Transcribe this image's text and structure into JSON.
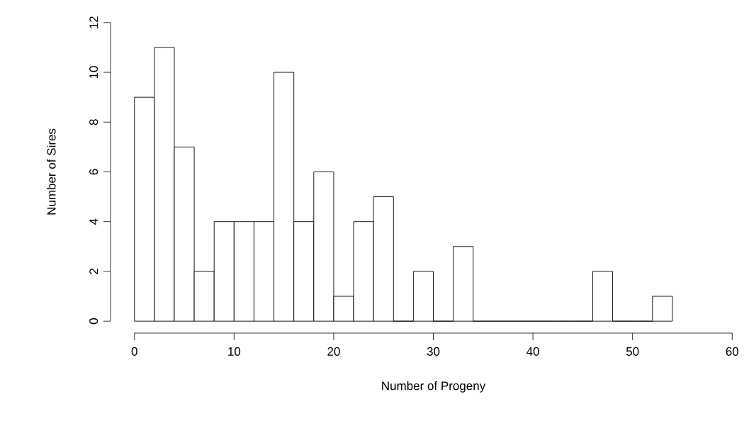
{
  "chart_data": {
    "type": "histogram",
    "xlabel": "Number of Progeny",
    "ylabel": "Number of Sires",
    "bins": [
      0,
      2,
      4,
      6,
      8,
      10,
      12,
      14,
      16,
      18,
      20,
      22,
      24,
      26,
      28,
      30,
      32,
      34,
      36,
      38,
      40,
      42,
      44,
      46,
      48,
      50,
      52,
      54
    ],
    "values": [
      9,
      11,
      7,
      2,
      4,
      4,
      4,
      10,
      4,
      6,
      1,
      4,
      5,
      0,
      2,
      0,
      3,
      0,
      0,
      0,
      0,
      0,
      0,
      2,
      0,
      0,
      1
    ],
    "xlim": [
      0,
      60
    ],
    "ylim": [
      0,
      12
    ],
    "xticks": [
      0,
      10,
      20,
      30,
      40,
      50,
      60
    ],
    "yticks": [
      0,
      2,
      4,
      6,
      8,
      10,
      12
    ]
  }
}
